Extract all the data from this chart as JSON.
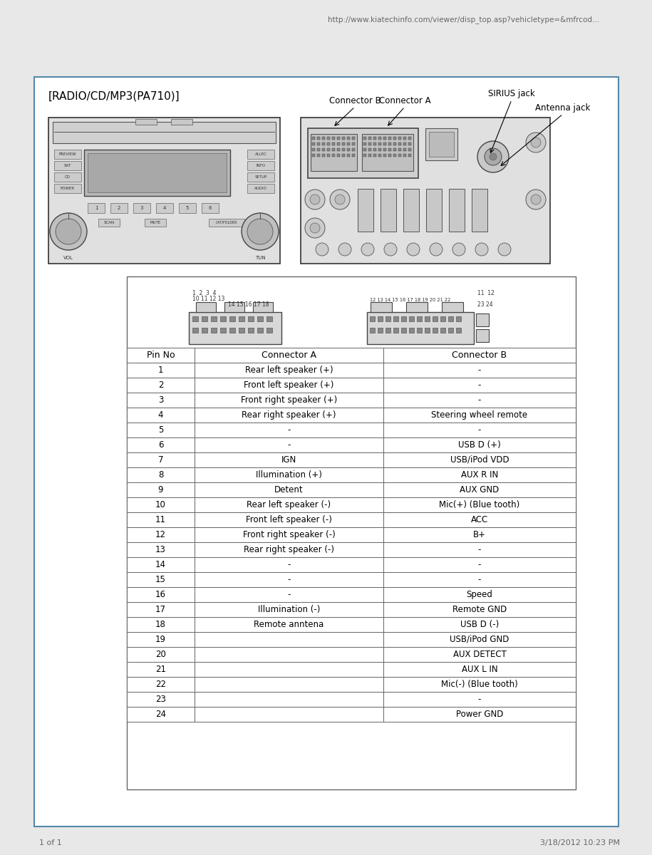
{
  "url_text": "http://www.kiatechinfo.com/viewer/disp_top.asp?vehicletype=&mfrcod...",
  "page_text": "1 of 1",
  "date_text": "3/18/2012 10:23 PM",
  "title": "[RADIO/CD/MP3(PA710)]",
  "label_connector_b": "Connector B",
  "label_connector_a": "Connector A",
  "label_sirius": "SIRIUS jack",
  "label_antenna": "Antenna jack",
  "table_header": [
    "Pin No",
    "Connector A",
    "Connector B"
  ],
  "table_data": [
    [
      "1",
      "Rear left speaker (+)",
      "-"
    ],
    [
      "2",
      "Front left speaker (+)",
      "-"
    ],
    [
      "3",
      "Front right speaker (+)",
      "-"
    ],
    [
      "4",
      "Rear right speaker (+)",
      "Steering wheel remote"
    ],
    [
      "5",
      "-",
      "-"
    ],
    [
      "6",
      "-",
      "USB D (+)"
    ],
    [
      "7",
      "IGN",
      "USB/iPod VDD"
    ],
    [
      "8",
      "Illumination (+)",
      "AUX R IN"
    ],
    [
      "9",
      "Detent",
      "AUX GND"
    ],
    [
      "10",
      "Rear left speaker (-)",
      "Mic(+) (Blue tooth)"
    ],
    [
      "11",
      "Front left speaker (-)",
      "ACC"
    ],
    [
      "12",
      "Front right speaker (-)",
      "B+"
    ],
    [
      "13",
      "Rear right speaker (-)",
      "-"
    ],
    [
      "14",
      "-",
      "-"
    ],
    [
      "15",
      "-",
      "-"
    ],
    [
      "16",
      "-",
      "Speed"
    ],
    [
      "17",
      "Illumination (-)",
      "Remote GND"
    ],
    [
      "18",
      "Remote anntena",
      "USB D (-)"
    ],
    [
      "19",
      "",
      "USB/iPod GND"
    ],
    [
      "20",
      "",
      "AUX DETECT"
    ],
    [
      "21",
      "",
      "AUX L IN"
    ],
    [
      "22",
      "",
      "Mic(-) (Blue tooth)"
    ],
    [
      "23",
      "",
      "-"
    ],
    [
      "24",
      "",
      "Power GND"
    ]
  ],
  "bg_color": "#ffffff",
  "border_color": "#5588aa",
  "table_border_color": "#666666",
  "text_color": "#222222",
  "url_color": "#666666",
  "outer_border": "#5588aa",
  "page_bg": "#e8e8e8"
}
